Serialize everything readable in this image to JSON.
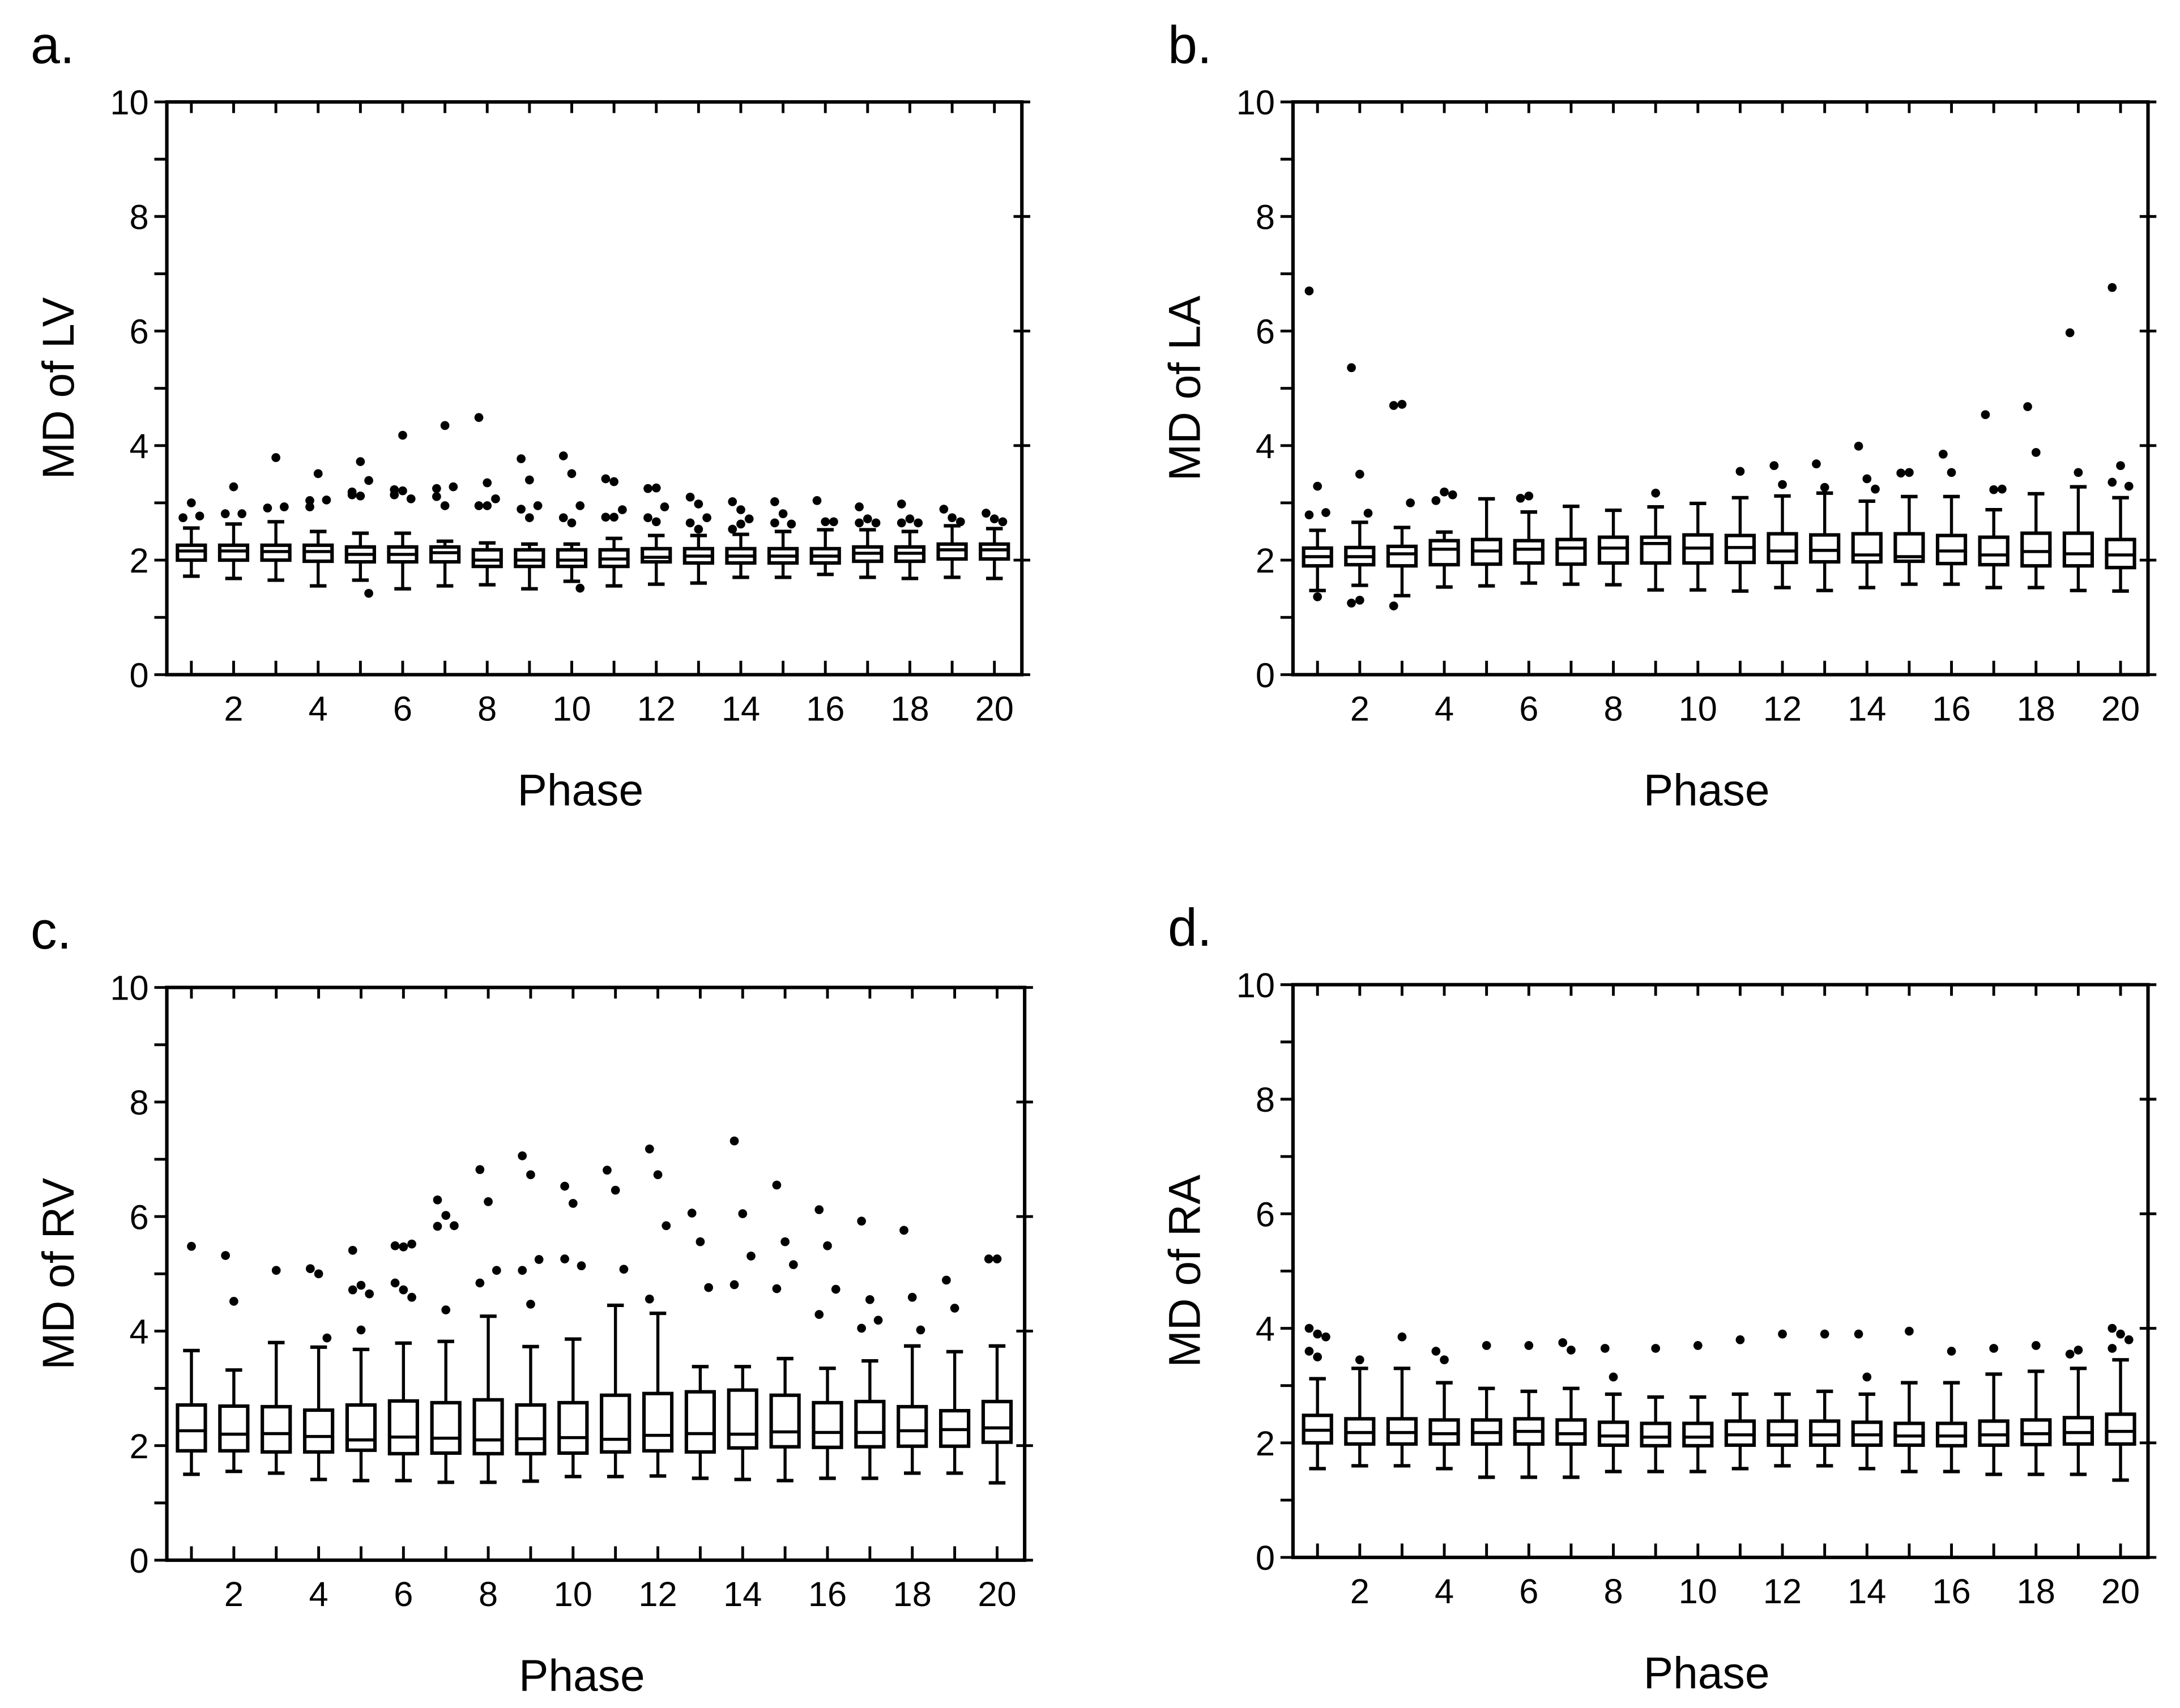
{
  "colors": {
    "ink": "#000000",
    "background": "#ffffff",
    "box_fill": "#ffffff"
  },
  "chart_data": [
    {
      "type": "box",
      "panel": "a.",
      "xlabel": "Phase",
      "ylabel": "MD of LV",
      "ylim": [
        0,
        10
      ],
      "yticks": [
        0,
        2,
        4,
        6,
        8,
        10
      ],
      "xticks": [
        2,
        4,
        6,
        8,
        10,
        12,
        14,
        16,
        18,
        20
      ],
      "phases": [
        1,
        2,
        3,
        4,
        5,
        6,
        7,
        8,
        9,
        10,
        11,
        12,
        13,
        14,
        15,
        16,
        17,
        18,
        19,
        20
      ],
      "stats_order": [
        "whisker_low",
        "q1",
        "median",
        "q3",
        "whisker_high"
      ],
      "stats": [
        [
          1.72,
          2.0,
          2.16,
          2.26,
          2.56
        ],
        [
          1.68,
          2.0,
          2.16,
          2.26,
          2.63
        ],
        [
          1.65,
          2.0,
          2.15,
          2.26,
          2.67
        ],
        [
          1.55,
          1.98,
          2.15,
          2.26,
          2.5
        ],
        [
          1.65,
          1.97,
          2.1,
          2.23,
          2.47
        ],
        [
          1.5,
          1.97,
          2.1,
          2.23,
          2.47
        ],
        [
          1.55,
          1.97,
          2.13,
          2.23,
          2.33
        ],
        [
          1.57,
          1.89,
          2.0,
          2.18,
          2.3
        ],
        [
          1.5,
          1.89,
          2.0,
          2.18,
          2.28
        ],
        [
          1.63,
          1.89,
          2.0,
          2.18,
          2.28
        ],
        [
          1.55,
          1.89,
          2.02,
          2.18,
          2.38
        ],
        [
          1.58,
          1.97,
          2.05,
          2.2,
          2.43
        ],
        [
          1.6,
          1.95,
          2.07,
          2.2,
          2.43
        ],
        [
          1.7,
          1.95,
          2.07,
          2.2,
          2.45
        ],
        [
          1.7,
          1.95,
          2.07,
          2.2,
          2.5
        ],
        [
          1.75,
          1.95,
          2.07,
          2.2,
          2.53
        ],
        [
          1.7,
          1.98,
          2.12,
          2.23,
          2.53
        ],
        [
          1.68,
          1.98,
          2.12,
          2.23,
          2.5
        ],
        [
          1.7,
          2.02,
          2.18,
          2.28,
          2.6
        ],
        [
          1.68,
          2.02,
          2.18,
          2.28,
          2.55
        ]
      ],
      "outliers": [
        [
          2.74,
          3.0,
          2.77
        ],
        [
          2.81,
          3.28,
          2.81
        ],
        [
          2.91,
          3.79,
          2.93
        ],
        [
          2.93,
          3.51,
          3.05,
          3.04
        ],
        [
          3.19,
          3.72,
          3.39,
          3.14,
          3.12,
          1.42
        ],
        [
          3.23,
          3.21,
          3.07,
          3.14,
          4.18
        ],
        [
          3.25,
          4.35,
          3.28,
          3.11,
          2.95
        ],
        [
          4.49,
          3.35,
          3.07,
          2.95,
          2.95
        ],
        [
          3.77,
          3.4,
          2.95,
          2.89,
          2.74
        ],
        [
          3.82,
          3.51,
          2.95,
          2.74,
          2.65,
          1.51
        ],
        [
          3.42,
          3.37,
          2.88,
          2.75,
          2.75
        ],
        [
          3.25,
          3.26,
          2.93,
          2.74,
          2.67
        ],
        [
          3.1,
          2.98,
          2.74,
          2.65,
          2.54
        ],
        [
          3.02,
          2.88,
          2.72,
          2.54,
          2.63
        ],
        [
          3.02,
          2.81,
          2.63,
          2.65
        ],
        [
          3.04,
          2.67,
          2.67
        ],
        [
          2.93,
          2.72,
          2.65,
          2.65
        ],
        [
          2.98,
          2.72,
          2.65,
          2.65
        ],
        [
          2.89,
          2.74,
          2.67
        ],
        [
          2.82,
          2.72,
          2.67
        ]
      ]
    },
    {
      "type": "box",
      "panel": "b.",
      "xlabel": "Phase",
      "ylabel": "MD of LA",
      "ylim": [
        0,
        10
      ],
      "yticks": [
        0,
        2,
        4,
        6,
        8,
        10
      ],
      "xticks": [
        2,
        4,
        6,
        8,
        10,
        12,
        14,
        16,
        18,
        20
      ],
      "phases": [
        1,
        2,
        3,
        4,
        5,
        6,
        7,
        8,
        9,
        10,
        11,
        12,
        13,
        14,
        15,
        16,
        17,
        18,
        19,
        20
      ],
      "stats_order": [
        "whisker_low",
        "q1",
        "median",
        "q3",
        "whisker_high"
      ],
      "stats": [
        [
          1.47,
          1.9,
          2.06,
          2.21,
          2.52
        ],
        [
          1.56,
          1.92,
          2.06,
          2.22,
          2.66
        ],
        [
          1.38,
          1.9,
          2.11,
          2.24,
          2.57
        ],
        [
          1.53,
          1.92,
          2.19,
          2.34,
          2.49
        ],
        [
          1.55,
          1.93,
          2.16,
          2.36,
          3.07
        ],
        [
          1.6,
          1.95,
          2.19,
          2.34,
          2.84
        ],
        [
          1.58,
          1.93,
          2.21,
          2.36,
          2.94
        ],
        [
          1.57,
          1.95,
          2.21,
          2.4,
          2.87
        ],
        [
          1.48,
          1.95,
          2.29,
          2.4,
          2.93
        ],
        [
          1.48,
          1.95,
          2.21,
          2.44,
          2.99
        ],
        [
          1.46,
          1.96,
          2.22,
          2.43,
          3.09
        ],
        [
          1.52,
          1.96,
          2.16,
          2.46,
          3.12
        ],
        [
          1.47,
          1.97,
          2.17,
          2.44,
          3.17
        ],
        [
          1.52,
          1.97,
          2.09,
          2.46,
          3.03
        ],
        [
          1.58,
          1.98,
          2.06,
          2.46,
          3.11
        ],
        [
          1.58,
          1.94,
          2.16,
          2.43,
          3.11
        ],
        [
          1.52,
          1.92,
          2.09,
          2.4,
          2.88
        ],
        [
          1.52,
          1.9,
          2.15,
          2.47,
          3.16
        ],
        [
          1.47,
          1.9,
          2.11,
          2.47,
          3.28
        ],
        [
          1.46,
          1.87,
          2.09,
          2.36,
          3.09
        ]
      ],
      "outliers": [
        [
          6.7,
          3.29,
          2.83,
          2.79,
          1.36
        ],
        [
          5.36,
          3.5,
          2.82,
          1.25,
          1.3
        ],
        [
          4.7,
          4.72,
          3.0,
          1.2
        ],
        [
          3.04,
          3.19,
          3.14
        ],
        [],
        [
          3.08,
          3.12
        ],
        [],
        [],
        [
          3.17
        ],
        [],
        [
          3.55
        ],
        [
          3.65,
          3.32
        ],
        [
          3.68,
          3.27
        ],
        [
          3.99,
          3.42,
          3.24
        ],
        [
          3.52,
          3.53
        ],
        [
          3.85,
          3.53
        ],
        [
          4.54,
          3.23,
          3.24
        ],
        [
          4.68,
          3.88
        ],
        [
          5.97,
          3.53
        ],
        [
          6.76,
          3.65,
          3.29,
          3.36
        ]
      ]
    },
    {
      "type": "box",
      "panel": "c.",
      "xlabel": "Phase",
      "ylabel": "MD of RV",
      "ylim": [
        0,
        10
      ],
      "yticks": [
        0,
        2,
        4,
        6,
        8,
        10
      ],
      "xticks": [
        2,
        4,
        6,
        8,
        10,
        12,
        14,
        16,
        18,
        20
      ],
      "phases": [
        1,
        2,
        3,
        4,
        5,
        6,
        7,
        8,
        9,
        10,
        11,
        12,
        13,
        14,
        15,
        16,
        17,
        18,
        19,
        20
      ],
      "stats_order": [
        "whisker_low",
        "q1",
        "median",
        "q3",
        "whisker_high"
      ],
      "stats": [
        [
          1.5,
          1.91,
          2.26,
          2.71,
          3.66
        ],
        [
          1.55,
          1.91,
          2.2,
          2.69,
          3.32
        ],
        [
          1.52,
          1.89,
          2.21,
          2.68,
          3.8
        ],
        [
          1.41,
          1.89,
          2.16,
          2.62,
          3.72
        ],
        [
          1.39,
          1.92,
          2.1,
          2.71,
          3.68
        ],
        [
          1.39,
          1.86,
          2.15,
          2.78,
          3.79
        ],
        [
          1.36,
          1.87,
          2.13,
          2.75,
          3.82
        ],
        [
          1.36,
          1.86,
          2.1,
          2.8,
          4.26
        ],
        [
          1.38,
          1.86,
          2.12,
          2.71,
          3.73
        ],
        [
          1.46,
          1.87,
          2.14,
          2.75,
          3.86
        ],
        [
          1.46,
          1.89,
          2.11,
          2.88,
          4.45
        ],
        [
          1.47,
          1.91,
          2.18,
          2.91,
          4.31
        ],
        [
          1.43,
          1.89,
          2.21,
          2.94,
          3.38
        ],
        [
          1.41,
          1.96,
          2.2,
          2.97,
          3.38
        ],
        [
          1.39,
          1.98,
          2.24,
          2.88,
          3.52
        ],
        [
          1.43,
          1.97,
          2.23,
          2.75,
          3.35
        ],
        [
          1.43,
          1.98,
          2.23,
          2.77,
          3.48
        ],
        [
          1.52,
          1.99,
          2.26,
          2.68,
          3.74
        ],
        [
          1.52,
          1.99,
          2.28,
          2.61,
          3.64
        ],
        [
          1.35,
          2.06,
          2.31,
          2.77,
          3.74
        ]
      ],
      "outliers": [
        [
          5.48
        ],
        [
          5.32,
          4.52
        ],
        [
          5.06
        ],
        [
          5.09,
          5.0,
          3.88
        ],
        [
          5.41,
          4.8,
          4.65,
          4.72,
          4.02
        ],
        [
          5.49,
          5.47,
          5.52,
          4.84,
          4.72,
          4.59
        ],
        [
          6.29,
          6.02,
          5.84,
          5.83,
          4.37
        ],
        [
          6.82,
          6.26,
          5.06,
          4.84
        ],
        [
          7.06,
          6.73,
          5.25,
          5.06,
          4.47
        ],
        [
          6.53,
          6.23,
          5.14,
          5.26
        ],
        [
          6.81,
          6.46,
          5.08
        ],
        [
          7.18,
          6.73,
          5.84,
          4.56
        ],
        [
          6.06,
          5.56,
          4.76
        ],
        [
          7.32,
          6.05,
          5.31,
          4.81
        ],
        [
          6.55,
          5.56,
          5.16,
          4.74
        ],
        [
          6.12,
          5.49,
          4.73,
          4.29
        ],
        [
          5.92,
          4.55,
          4.19,
          4.05
        ],
        [
          5.76,
          4.59,
          4.02
        ],
        [
          4.89,
          4.4
        ],
        [
          5.26,
          5.26
        ]
      ]
    },
    {
      "type": "box",
      "panel": "d.",
      "xlabel": "Phase",
      "ylabel": "MD of RA",
      "ylim": [
        0,
        10
      ],
      "yticks": [
        0,
        2,
        4,
        6,
        8,
        10
      ],
      "xticks": [
        2,
        4,
        6,
        8,
        10,
        12,
        14,
        16,
        18,
        20
      ],
      "phases": [
        1,
        2,
        3,
        4,
        5,
        6,
        7,
        8,
        9,
        10,
        11,
        12,
        13,
        14,
        15,
        16,
        17,
        18,
        19,
        20
      ],
      "stats_order": [
        "whisker_low",
        "q1",
        "median",
        "q3",
        "whisker_high"
      ],
      "stats": [
        [
          1.55,
          2.0,
          2.22,
          2.48,
          3.12
        ],
        [
          1.6,
          1.98,
          2.18,
          2.42,
          3.3
        ],
        [
          1.6,
          1.98,
          2.18,
          2.42,
          3.3
        ],
        [
          1.55,
          1.98,
          2.16,
          2.4,
          3.05
        ],
        [
          1.4,
          1.98,
          2.18,
          2.4,
          2.95
        ],
        [
          1.4,
          1.98,
          2.2,
          2.42,
          2.9
        ],
        [
          1.4,
          1.98,
          2.16,
          2.4,
          2.95
        ],
        [
          1.5,
          1.96,
          2.12,
          2.36,
          2.85
        ],
        [
          1.5,
          1.95,
          2.1,
          2.34,
          2.8
        ],
        [
          1.5,
          1.95,
          2.1,
          2.34,
          2.8
        ],
        [
          1.55,
          1.96,
          2.14,
          2.38,
          2.85
        ],
        [
          1.6,
          1.96,
          2.14,
          2.38,
          2.85
        ],
        [
          1.6,
          1.96,
          2.14,
          2.38,
          2.9
        ],
        [
          1.55,
          1.96,
          2.14,
          2.36,
          2.85
        ],
        [
          1.5,
          1.96,
          2.12,
          2.34,
          3.05
        ],
        [
          1.5,
          1.95,
          2.12,
          2.34,
          3.05
        ],
        [
          1.45,
          1.96,
          2.14,
          2.38,
          3.2
        ],
        [
          1.45,
          1.97,
          2.16,
          2.4,
          3.25
        ],
        [
          1.45,
          1.98,
          2.18,
          2.44,
          3.3
        ],
        [
          1.35,
          1.98,
          2.2,
          2.5,
          3.45
        ]
      ],
      "outliers": [
        [
          4.0,
          3.9,
          3.85,
          3.6,
          3.5
        ],
        [
          3.45
        ],
        [
          3.85
        ],
        [
          3.6,
          3.45
        ],
        [
          3.7
        ],
        [
          3.7
        ],
        [
          3.75,
          3.62
        ],
        [
          3.65,
          3.15
        ],
        [
          3.65
        ],
        [
          3.7
        ],
        [
          3.8
        ],
        [
          3.9
        ],
        [
          3.9
        ],
        [
          3.9,
          3.15
        ],
        [
          3.95
        ],
        [
          3.6
        ],
        [
          3.65
        ],
        [
          3.7
        ],
        [
          3.55,
          3.62
        ],
        [
          4.0,
          3.9,
          3.8,
          3.65
        ]
      ]
    }
  ]
}
